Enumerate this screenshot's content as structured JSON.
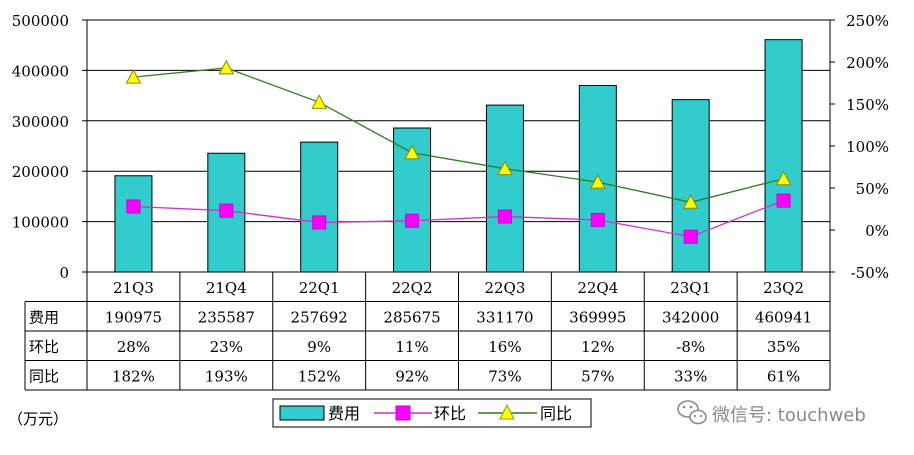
{
  "chart_data": {
    "type": "bar",
    "categories": [
      "21Q3",
      "21Q4",
      "22Q1",
      "22Q2",
      "22Q3",
      "22Q4",
      "23Q1",
      "23Q2"
    ],
    "series": [
      {
        "name": "费用",
        "type": "bar",
        "axis": "left",
        "color": "#33CCCC",
        "values": [
          190975,
          235587,
          257692,
          285675,
          331170,
          369995,
          342000,
          460941
        ]
      },
      {
        "name": "环比",
        "type": "line",
        "axis": "right",
        "color": "#CC33CC",
        "marker": "square",
        "values": [
          28,
          23,
          9,
          11,
          16,
          12,
          -8,
          35
        ]
      },
      {
        "name": "同比",
        "type": "line",
        "axis": "right",
        "color": "#2E7D1E",
        "marker": "triangle",
        "marker_color": "#FFFF00",
        "values": [
          182,
          193,
          152,
          92,
          73,
          57,
          33,
          61
        ]
      }
    ],
    "y_left": {
      "ylim": [
        0,
        500000
      ],
      "ticks": [
        "0",
        "100000",
        "200000",
        "300000",
        "400000",
        "500000"
      ]
    },
    "y_right": {
      "ylim": [
        -50,
        250
      ],
      "ticks": [
        "-50%",
        "0%",
        "50%",
        "100%",
        "150%",
        "200%",
        "250%"
      ]
    },
    "unit_label": "（万元）",
    "grid": true,
    "legend": {
      "position": "bottom",
      "entries": [
        "费用",
        "环比",
        "同比"
      ]
    },
    "table": {
      "row_labels": [
        "费用",
        "环比",
        "同比"
      ],
      "rows": [
        [
          "190975",
          "235587",
          "257692",
          "285675",
          "331170",
          "369995",
          "342000",
          "460941"
        ],
        [
          "28%",
          "23%",
          "9%",
          "11%",
          "16%",
          "12%",
          "-8%",
          "35%"
        ],
        [
          "182%",
          "193%",
          "152%",
          "92%",
          "73%",
          "57%",
          "33%",
          "61%"
        ]
      ]
    }
  },
  "watermark": {
    "text": "微信号: touchweb",
    "icon": "wechat-icon"
  }
}
